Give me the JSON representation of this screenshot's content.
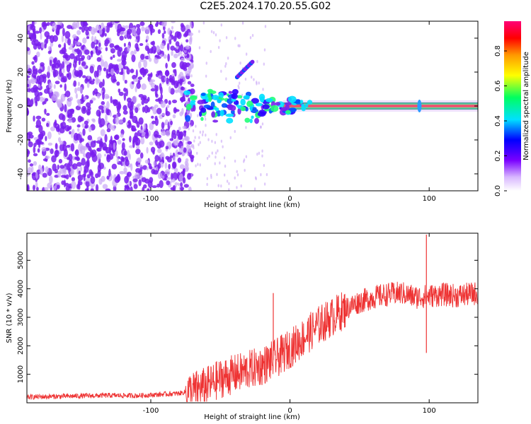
{
  "title": "C2E5.2024.170.20.55.G02",
  "colors": {
    "snr_line": "#ee3333",
    "scatter": "#7a1fee",
    "scatter_light": "#c9a6f6"
  },
  "chart_data": [
    {
      "type": "heatmap",
      "xlabel": "Height of straight line (km)",
      "ylabel": "Frequency (Hz)",
      "xlim": [
        -189,
        135
      ],
      "ylim": [
        -50,
        50
      ],
      "x_ticks": [
        -100,
        0,
        100
      ],
      "x_tick_labels": [
        "-100",
        "0",
        "100"
      ],
      "y_ticks": [
        -40,
        -20,
        0,
        20,
        40
      ],
      "y_tick_labels": [
        "-40",
        "-20",
        "0",
        "20",
        "40"
      ],
      "grid": false,
      "colorbar": {
        "label": "Normalized spectral amplitude",
        "range": [
          0,
          0.97
        ],
        "ticks": [
          0.0,
          0.2,
          0.4,
          0.6,
          0.8
        ],
        "tick_labels": [
          "0.0",
          "0.2",
          "0.4",
          "0.6",
          "0.8"
        ]
      },
      "features": {
        "noise_region_x": [
          -189,
          -75
        ],
        "carrier_line": {
          "x": [
            -5,
            135
          ],
          "frequency": 0,
          "amplitude": 0.93
        },
        "onset_cluster": {
          "x": [
            -75,
            15
          ],
          "frequency": [
            -12,
            12
          ],
          "amplitude": 0.45
        },
        "spur": {
          "x": [
            -38,
            -27
          ],
          "frequency": [
            17,
            26
          ],
          "amplitude": 0.3
        }
      }
    },
    {
      "type": "line",
      "xlabel": "Height of straight line (km)",
      "ylabel": "SNR (10 * v/v)",
      "xlim": [
        -189,
        135
      ],
      "ylim": [
        0,
        5950
      ],
      "x_ticks": [
        -100,
        0,
        100
      ],
      "x_tick_labels": [
        "-100",
        "0",
        "100"
      ],
      "y_ticks": [
        1000,
        2000,
        3000,
        4000,
        5000
      ],
      "y_tick_labels": [
        "1000",
        "2000",
        "3000",
        "4000",
        "5000"
      ],
      "grid": false,
      "series": [
        {
          "x": [
            -189,
            -170,
            -150,
            -130,
            -110,
            -90,
            -80,
            -70,
            -60,
            -50,
            -40,
            -30,
            -20,
            -10,
            0,
            10,
            20,
            30,
            40,
            50,
            60,
            70,
            80,
            90,
            100,
            110,
            120,
            135
          ],
          "values": [
            200,
            220,
            240,
            260,
            250,
            300,
            330,
            420,
            580,
            850,
            1000,
            1150,
            1300,
            1550,
            1900,
            2300,
            2700,
            3000,
            3300,
            3550,
            3700,
            3800,
            3850,
            3700,
            3750,
            3800,
            3750,
            3850
          ]
        }
      ],
      "spikes": [
        {
          "x": -12,
          "value": 3850
        },
        {
          "x": 98,
          "value": 5900
        },
        {
          "x": 98,
          "value": 1750
        }
      ]
    }
  ]
}
